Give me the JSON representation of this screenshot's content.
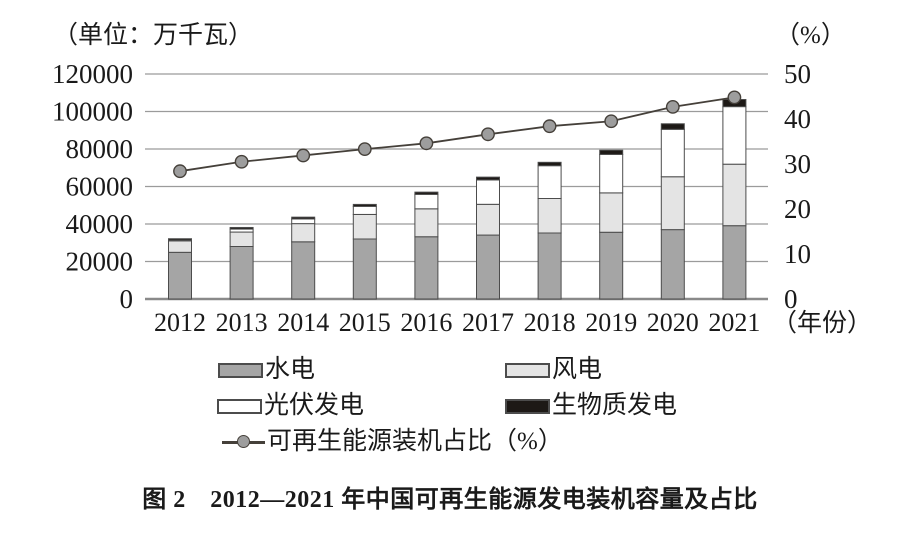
{
  "header": {
    "left_unit": "（单位：万千瓦）",
    "right_unit": "（%）"
  },
  "caption": "图 2　2012—2021 年中国可再生能源发电装机容量及占比",
  "chart_data": {
    "type": "bar",
    "subtype": "stacked-bar-with-line",
    "title": "图 2　2012—2021 年中国可再生能源发电装机容量及占比",
    "categories": [
      "2012",
      "2013",
      "2014",
      "2015",
      "2016",
      "2017",
      "2018",
      "2019",
      "2020",
      "2021"
    ],
    "x_axis_suffix": "（年份）",
    "left_axis": {
      "unit": "万千瓦",
      "range": [
        0,
        120000
      ],
      "ticks": [
        0,
        20000,
        40000,
        60000,
        80000,
        100000,
        120000
      ]
    },
    "right_axis": {
      "unit": "%",
      "range": [
        0,
        50
      ],
      "ticks": [
        0,
        10,
        20,
        30,
        40,
        50
      ]
    },
    "grid": true,
    "legend_position": "bottom",
    "series": [
      {
        "name": "水电",
        "type": "bar",
        "color": "#a5a5a5",
        "values": [
          24900,
          28000,
          30500,
          32000,
          33200,
          34100,
          35200,
          35600,
          37000,
          39100
        ]
      },
      {
        "name": "风电",
        "type": "bar",
        "color": "#e4e4e4",
        "values": [
          6100,
          7700,
          9700,
          13100,
          14900,
          16400,
          18400,
          21000,
          28200,
          32800
        ]
      },
      {
        "name": "光伏发电",
        "type": "bar",
        "color": "#ffffff",
        "values": [
          350,
          1600,
          2500,
          4300,
          7700,
          13000,
          17500,
          20500,
          25300,
          30700
        ]
      },
      {
        "name": "生物质发电",
        "type": "bar",
        "color": "#1d1916",
        "values": [
          800,
          850,
          950,
          1050,
          1200,
          1500,
          1800,
          2250,
          2950,
          3800
        ]
      },
      {
        "name": "可再生能源装机占比（%）",
        "type": "line",
        "axis": "right",
        "color": "#45403a",
        "marker_color": "#9d9d9d",
        "values": [
          28.4,
          30.5,
          31.9,
          33.3,
          34.6,
          36.6,
          38.4,
          39.5,
          42.7,
          44.8
        ]
      }
    ],
    "colors": {
      "grid": "#9b9b9b",
      "axis": "#8a8a8a",
      "bar_outline": "#4c4c4c",
      "text": "#1a1a1a"
    }
  }
}
